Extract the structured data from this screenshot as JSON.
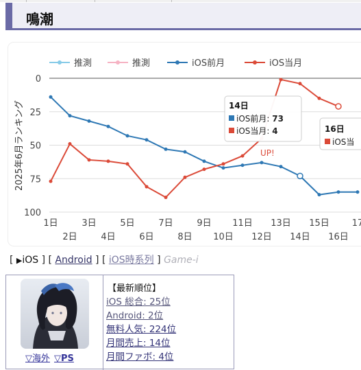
{
  "page": {
    "title": "鳴潮"
  },
  "chart_data": {
    "type": "line",
    "ylabel": "2025年6月ランキング",
    "ylim": [
      100,
      0
    ],
    "yticks": [
      0,
      25,
      50,
      75,
      100
    ],
    "x_labels_top": [
      "1日",
      "3日",
      "5日",
      "7日",
      "9日",
      "11日",
      "13日",
      "15日",
      "17"
    ],
    "x_labels_bottom": [
      "2日",
      "4日",
      "6日",
      "8日",
      "10日",
      "12日",
      "14日",
      "16日"
    ],
    "x": [
      1,
      2,
      3,
      4,
      5,
      6,
      7,
      8,
      9,
      10,
      11,
      12,
      13,
      14,
      15,
      16,
      17
    ],
    "legend": [
      {
        "name": "推測",
        "color": "#87cbe8"
      },
      {
        "name": "推測",
        "color": "#f6b3c3"
      },
      {
        "name": "iOS前月",
        "color": "#2e78b4"
      },
      {
        "name": "iOS当月",
        "color": "#db4a38"
      }
    ],
    "series": [
      {
        "name": "iOS前月",
        "color": "#2e78b4",
        "values": [
          14,
          28,
          32,
          36,
          43,
          46,
          53,
          55,
          62,
          67,
          65,
          63,
          66,
          73,
          87,
          85,
          85
        ]
      },
      {
        "name": "iOS当月",
        "color": "#db4a38",
        "values": [
          77,
          49,
          61,
          62,
          64,
          81,
          89,
          74,
          68,
          64,
          58,
          45,
          1,
          4,
          15,
          21,
          null
        ]
      }
    ],
    "annotation": "UP!",
    "tooltip_primary": {
      "title": "14日",
      "rows": [
        {
          "label": "iOS前月: ",
          "value": "73",
          "color": "#2e78b4"
        },
        {
          "label": "iOS当月: ",
          "value": "4",
          "color": "#db4a38"
        }
      ]
    },
    "tooltip_secondary": {
      "title": "16日",
      "row_label": "iOS当",
      "color": "#db4a38"
    }
  },
  "tabs": {
    "open": "[ ",
    "ios_marker": "▶",
    "ios": "iOS",
    "sep1": " ] [ ",
    "android": "Android",
    "sep2": " ] [ ",
    "ios_series": "iOS時系列",
    "sep3": " ] ",
    "game_i": "Game-i"
  },
  "info": {
    "overseas_link": "▽海外",
    "ps_link": "▽PS",
    "rank_header": "【最新順位】",
    "ranks": [
      {
        "label": "iOS 総合: 25位"
      },
      {
        "label": "Android: 2位"
      },
      {
        "label": "無料人気: 224位"
      },
      {
        "label": "月間売上: 14位"
      },
      {
        "label": "月間ファボ: 4位"
      }
    ]
  }
}
